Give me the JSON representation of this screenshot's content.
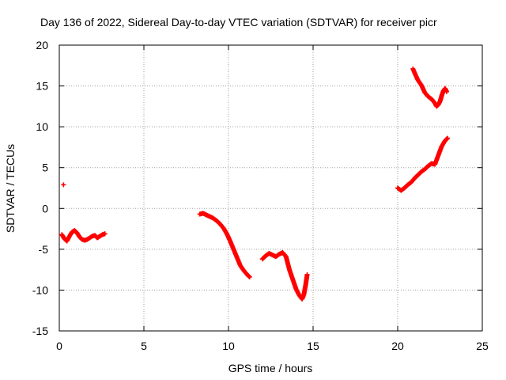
{
  "chart_data": {
    "type": "scatter",
    "title": "Day 136 of 2022, Sidereal Day-to-day VTEC variation (SDTVAR) for receiver picr",
    "xlabel": "GPS time / hours",
    "ylabel": "SDTVAR / TECUs",
    "xlim": [
      0,
      25
    ],
    "ylim": [
      -15,
      20
    ],
    "x_ticks": [
      0,
      5,
      10,
      15,
      20,
      25
    ],
    "y_ticks": [
      -15,
      -10,
      -5,
      0,
      5,
      10,
      15,
      20
    ],
    "grid": true,
    "marker": "+",
    "color": "#ff0000",
    "series": [
      {
        "name": "isolated point",
        "x": [
          0.25
        ],
        "y": [
          2.9
        ]
      },
      {
        "name": "segment 1",
        "x": [
          0.15,
          0.3,
          0.45,
          0.6,
          0.75,
          0.9,
          1.05,
          1.2,
          1.35,
          1.5,
          1.65,
          1.8,
          1.95,
          2.1,
          2.25,
          2.4,
          2.55,
          2.7
        ],
        "y": [
          -3.2,
          -3.7,
          -4.0,
          -3.4,
          -2.9,
          -2.7,
          -3.0,
          -3.5,
          -3.8,
          -3.9,
          -3.8,
          -3.6,
          -3.4,
          -3.3,
          -3.6,
          -3.4,
          -3.2,
          -3.1
        ]
      },
      {
        "name": "segment 2",
        "x": [
          8.3,
          8.5,
          8.7,
          8.9,
          9.1,
          9.3,
          9.5,
          9.7,
          9.9,
          10.1,
          10.3,
          10.5,
          10.7,
          10.9,
          11.1,
          11.25
        ],
        "y": [
          -0.7,
          -0.6,
          -0.8,
          -1.0,
          -1.2,
          -1.5,
          -1.9,
          -2.4,
          -3.1,
          -4.0,
          -5.0,
          -6.0,
          -7.0,
          -7.6,
          -8.1,
          -8.4
        ]
      },
      {
        "name": "segment 3",
        "x": [
          12.0,
          12.2,
          12.4,
          12.6,
          12.8,
          13.0,
          13.2,
          13.4,
          13.6,
          13.8,
          14.0,
          14.2,
          14.35,
          14.45,
          14.55,
          14.65
        ],
        "y": [
          -6.2,
          -5.8,
          -5.5,
          -5.7,
          -5.9,
          -5.6,
          -5.4,
          -5.9,
          -7.5,
          -8.7,
          -9.9,
          -10.7,
          -11.1,
          -10.6,
          -9.5,
          -8.1
        ]
      },
      {
        "name": "segment 4",
        "x": [
          20.0,
          20.2,
          20.4,
          20.6,
          20.8,
          21.0,
          21.2,
          21.4,
          21.6,
          21.8,
          22.0,
          22.2,
          22.4,
          22.6,
          22.8,
          22.95
        ],
        "y": [
          2.5,
          2.2,
          2.5,
          2.9,
          3.2,
          3.7,
          4.1,
          4.5,
          4.8,
          5.2,
          5.5,
          5.4,
          6.5,
          7.6,
          8.3,
          8.6
        ]
      },
      {
        "name": "segment 5",
        "x": [
          20.9,
          21.0,
          21.2,
          21.4,
          21.6,
          21.8,
          22.0,
          22.2,
          22.3,
          22.4,
          22.5,
          22.6,
          22.7,
          22.8,
          22.9
        ],
        "y": [
          17.1,
          16.6,
          15.7,
          15.1,
          14.2,
          13.7,
          13.4,
          12.9,
          12.5,
          12.7,
          13.1,
          13.8,
          14.4,
          14.7,
          14.3
        ]
      }
    ]
  }
}
